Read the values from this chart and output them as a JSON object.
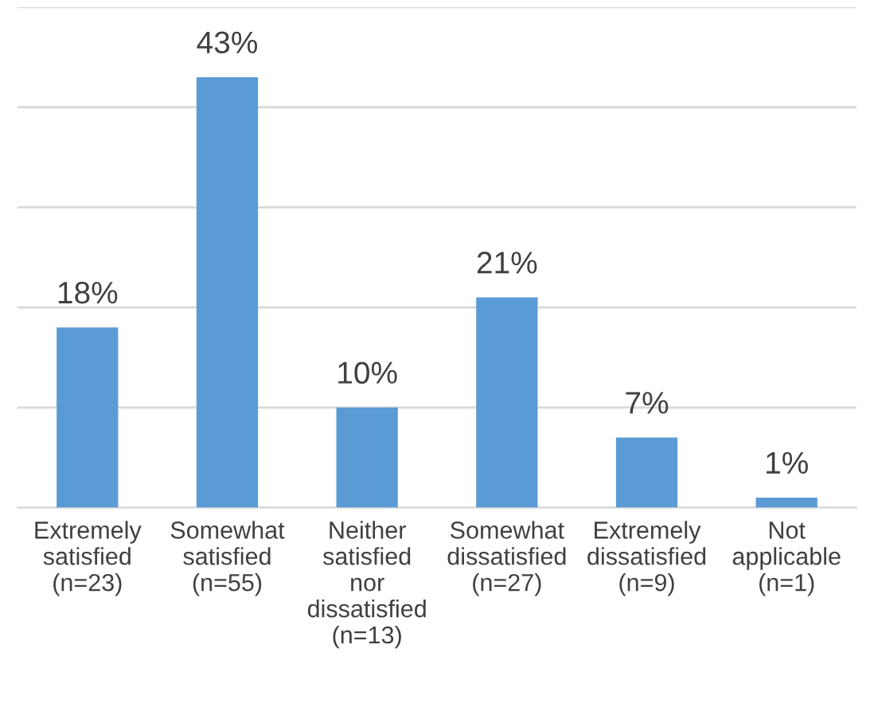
{
  "chart_data": {
    "type": "bar",
    "categories": [
      "Extremely\nsatisfied\n(n=23)",
      "Somewhat\nsatisfied\n(n=55)",
      "Neither\nsatisfied\nnor\ndissatisfied\n(n=13)",
      "Somewhat\ndissatisfied\n(n=27)",
      "Extremely\ndissatisfied\n(n=9)",
      "Not\napplicable\n(n=1)"
    ],
    "values": [
      18,
      43,
      10,
      21,
      7,
      1
    ],
    "value_labels": [
      "18%",
      "43%",
      "10%",
      "21%",
      "7%",
      "1%"
    ],
    "color": "#5b9bd5",
    "ylim": [
      0,
      50
    ],
    "yticks": [
      {
        "value": 0,
        "label": null
      },
      {
        "value": 10,
        "label": null
      },
      {
        "value": 20,
        "label": null
      },
      {
        "value": 30,
        "label": null
      },
      {
        "value": 40,
        "label": null
      },
      {
        "value": 50,
        "label": null
      }
    ],
    "tick_labels": "x",
    "grid": "y",
    "legend": false
  }
}
